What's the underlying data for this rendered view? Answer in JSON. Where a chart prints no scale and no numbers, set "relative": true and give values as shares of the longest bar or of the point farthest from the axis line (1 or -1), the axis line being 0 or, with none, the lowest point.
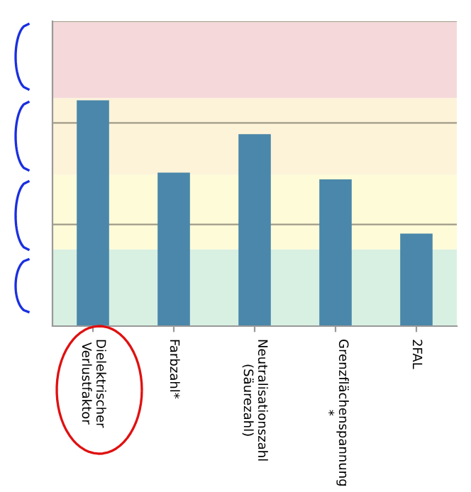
{
  "chart_data": {
    "type": "bar",
    "relative": true,
    "categories": [
      "Dielektrischer\nVerlustfaktor",
      "Farbzahl*",
      "Neutralisationszahl\n(Säurezahl)",
      "Grenzflächenspannung\n*",
      "2FAL"
    ],
    "values": [
      1,
      0.68,
      0.85,
      0.65,
      0.41
    ],
    "color": "#4a87aa",
    "bands": [
      {
        "axis": "y",
        "from": 0,
        "to": 0.34,
        "color": "#d8f0e2"
      },
      {
        "axis": "y",
        "from": 0.34,
        "to": 0.67,
        "color": "#fefbd8"
      },
      {
        "axis": "y",
        "from": 0.67,
        "to": 1.01,
        "color": "#fdf3d8"
      },
      {
        "axis": "y",
        "from": 1.01,
        "to": 1.35,
        "color": "#f5d9da"
      }
    ],
    "ref_lines": [
      {
        "axis": "y",
        "value": 0.45,
        "color": "#a09a88"
      },
      {
        "axis": "y",
        "value": 0.9,
        "color": "#a09a88"
      },
      {
        "axis": "y",
        "value": 1.35,
        "color": "#a09a88"
      }
    ],
    "grid": false,
    "legend": false
  }
}
